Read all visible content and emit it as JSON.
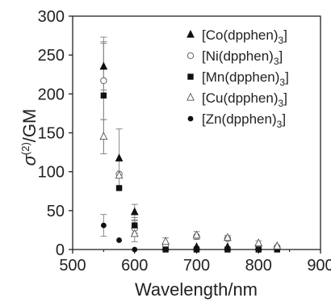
{
  "chart_data": {
    "type": "scatter",
    "title": "",
    "xlabel": "Wavelength/nm",
    "ylabel": {
      "base": "σ",
      "sup": "(2)",
      "suffix": "/GM"
    },
    "xlim": [
      500,
      900
    ],
    "ylim": [
      0,
      300
    ],
    "x_ticks": [
      500,
      600,
      700,
      800,
      900
    ],
    "y_ticks": [
      0,
      50,
      100,
      150,
      200,
      250,
      300
    ],
    "legend_position": "top-right",
    "series": [
      {
        "name": {
          "pre": "[Co(dpphen)",
          "sub": "3",
          "post": "]"
        },
        "marker": "triangle-filled",
        "points": [
          {
            "x": 550,
            "y": 235,
            "err": 30
          },
          {
            "x": 575,
            "y": 117,
            "err": 38
          },
          {
            "x": 600,
            "y": 48,
            "err": 10
          },
          {
            "x": 650,
            "y": 3,
            "err": 0
          },
          {
            "x": 700,
            "y": 3,
            "err": 0
          },
          {
            "x": 750,
            "y": 3,
            "err": 0
          },
          {
            "x": 800,
            "y": 3,
            "err": 0
          },
          {
            "x": 830,
            "y": 4,
            "err": 0
          }
        ]
      },
      {
        "name": {
          "pre": "[Ni(dpphen)",
          "sub": "3",
          "post": "]"
        },
        "marker": "circle-open",
        "points": [
          {
            "x": 550,
            "y": 217,
            "err": 50
          },
          {
            "x": 575,
            "y": 97,
            "err": 0
          },
          {
            "x": 600,
            "y": 27,
            "err": 10
          },
          {
            "x": 650,
            "y": 5,
            "err": 0
          },
          {
            "x": 700,
            "y": 17,
            "err": 0
          },
          {
            "x": 750,
            "y": 14,
            "err": 0
          },
          {
            "x": 800,
            "y": 5,
            "err": 0
          },
          {
            "x": 830,
            "y": 3,
            "err": 0
          }
        ]
      },
      {
        "name": {
          "pre": "[Mn(dpphen)",
          "sub": "3",
          "post": "]"
        },
        "marker": "square-filled",
        "points": [
          {
            "x": 550,
            "y": 198,
            "err": 75
          },
          {
            "x": 575,
            "y": 79,
            "err": 0
          },
          {
            "x": 600,
            "y": 31,
            "err": 10
          },
          {
            "x": 650,
            "y": 0,
            "err": 0
          },
          {
            "x": 700,
            "y": 0,
            "err": 0
          },
          {
            "x": 750,
            "y": 0,
            "err": 0
          },
          {
            "x": 800,
            "y": 0,
            "err": 0
          },
          {
            "x": 830,
            "y": 0,
            "err": 0
          }
        ]
      },
      {
        "name": {
          "pre": "[Cu(dpphen)",
          "sub": "3",
          "post": "]"
        },
        "marker": "triangle-open",
        "points": [
          {
            "x": 550,
            "y": 145,
            "err": 22
          },
          {
            "x": 575,
            "y": 95,
            "err": 0
          },
          {
            "x": 600,
            "y": 20,
            "err": 10
          },
          {
            "x": 650,
            "y": 10,
            "err": 5
          },
          {
            "x": 700,
            "y": 18,
            "err": 5
          },
          {
            "x": 750,
            "y": 15,
            "err": 3
          },
          {
            "x": 800,
            "y": 8,
            "err": 3
          },
          {
            "x": 830,
            "y": 4,
            "err": 0
          }
        ]
      },
      {
        "name": {
          "pre": "[Zn(dpphen)",
          "sub": "3",
          "post": "]"
        },
        "marker": "circle-filled",
        "points": [
          {
            "x": 550,
            "y": 31,
            "err": 14
          },
          {
            "x": 575,
            "y": 12,
            "err": 0
          },
          {
            "x": 600,
            "y": 0,
            "err": 0
          }
        ]
      }
    ]
  }
}
